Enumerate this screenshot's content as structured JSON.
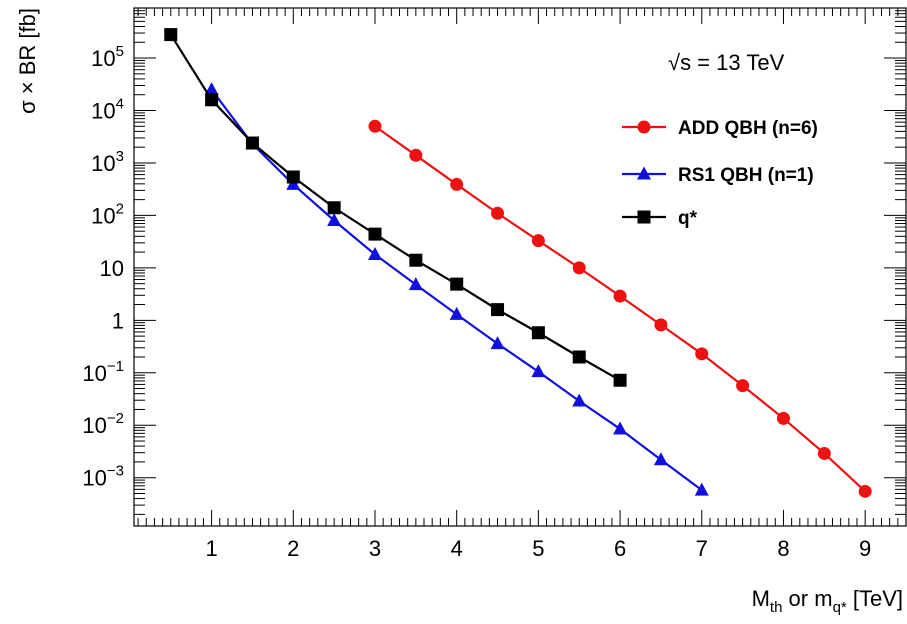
{
  "chart_data": {
    "type": "line",
    "annotation": "√s = 13 TeV",
    "xlabel": {
      "main": "M",
      "sub1": "th",
      "mid": " or m",
      "sub2": "q*",
      "tail": " [TeV]"
    },
    "ylabel": "σ × BR [fb]",
    "yscale": "log",
    "xlim": [
      0.05,
      9.5
    ],
    "ylim": [
      0.00012,
      900000
    ],
    "x_ticks": [
      1,
      2,
      3,
      4,
      5,
      6,
      7,
      8,
      9
    ],
    "y_ticks": [
      {
        "value": 0.001,
        "base": "10",
        "exp": "−3"
      },
      {
        "value": 0.01,
        "base": "10",
        "exp": "−2"
      },
      {
        "value": 0.1,
        "base": "10",
        "exp": "−1"
      },
      {
        "value": 1,
        "base": "1",
        "exp": ""
      },
      {
        "value": 10,
        "base": "10",
        "exp": ""
      },
      {
        "value": 100,
        "base": "10",
        "exp": "2"
      },
      {
        "value": 1000,
        "base": "10",
        "exp": "3"
      },
      {
        "value": 10000,
        "base": "10",
        "exp": "4"
      },
      {
        "value": 100000,
        "base": "10",
        "exp": "5"
      }
    ],
    "legend_position": "top-right",
    "series": [
      {
        "name": "ADD QBH (n=6)",
        "color": "#ee1111",
        "marker": "circle",
        "x": [
          3,
          3.5,
          4,
          4.5,
          5,
          5.5,
          6,
          6.5,
          7,
          7.5,
          8,
          8.5,
          9
        ],
        "y": [
          5000,
          1400,
          390,
          110,
          33,
          10,
          2.9,
          0.82,
          0.23,
          0.057,
          0.0135,
          0.0029,
          0.00055
        ]
      },
      {
        "name": "RS1 QBH (n=1)",
        "color": "#1111dd",
        "marker": "triangle",
        "x": [
          1,
          1.5,
          2,
          2.5,
          3,
          3.5,
          4,
          4.5,
          5,
          5.5,
          6,
          6.5,
          7
        ],
        "y": [
          25000,
          2300,
          390,
          80,
          18,
          4.8,
          1.3,
          0.36,
          0.105,
          0.029,
          0.0085,
          0.0022,
          0.00058
        ]
      },
      {
        "name": "q*",
        "color": "#000000",
        "marker": "square",
        "x": [
          0.5,
          1,
          1.5,
          2,
          2.5,
          3,
          3.5,
          4,
          4.5,
          5,
          5.5,
          6
        ],
        "y": [
          280000,
          16000,
          2400,
          540,
          140,
          44,
          14,
          4.9,
          1.6,
          0.58,
          0.2,
          0.072
        ]
      }
    ]
  }
}
